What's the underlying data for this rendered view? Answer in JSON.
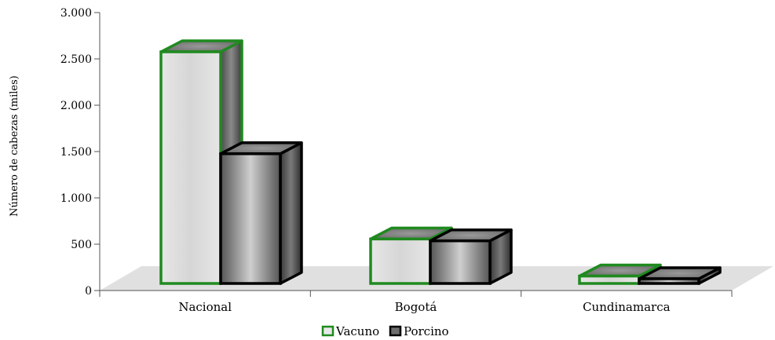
{
  "chart_data": {
    "type": "bar",
    "style": "3d-clustered-column",
    "ylabel": "Número de cabezas (miles)",
    "xlabel": "",
    "categories": [
      "Nacional",
      "Bogotá",
      "Cundinamarca"
    ],
    "ylim": [
      0,
      3000
    ],
    "yticks": [
      0,
      500,
      1000,
      1500,
      2000,
      2500,
      3000
    ],
    "ytick_labels": [
      "0",
      "500",
      "1.000",
      "1.500",
      "2.000",
      "2.500",
      "3.000"
    ],
    "series": [
      {
        "name": "Vacuno",
        "values": [
          2500,
          480,
          80
        ],
        "border_color": "#1f8a1f",
        "fill_color": "#e8e8e8"
      },
      {
        "name": "Porcino",
        "values": [
          1400,
          460,
          10
        ],
        "border_color": "#000000",
        "fill_color": "#6e6e6e"
      }
    ],
    "legend_position": "bottom",
    "grid": false
  }
}
